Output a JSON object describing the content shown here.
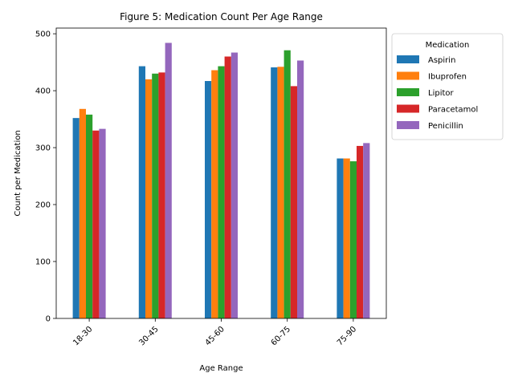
{
  "chart_data": {
    "type": "bar",
    "title": "Figure 5: Medication Count Per Age Range",
    "xlabel": "Age Range",
    "ylabel": "Count per Medication",
    "categories": [
      "18-30",
      "30-45",
      "45-60",
      "60-75",
      "75-90"
    ],
    "ylim": [
      0,
      510
    ],
    "yticks": [
      0,
      100,
      200,
      300,
      400,
      500
    ],
    "grid": false,
    "legend": {
      "title": "Medication",
      "placement": "outside-top-right"
    },
    "series": [
      {
        "name": "Aspirin",
        "color": "#1f77b4",
        "values": [
          352,
          443,
          417,
          441,
          281
        ]
      },
      {
        "name": "Ibuprofen",
        "color": "#ff7f0e",
        "values": [
          368,
          420,
          436,
          442,
          281
        ]
      },
      {
        "name": "Lipitor",
        "color": "#2ca02c",
        "values": [
          358,
          430,
          443,
          471,
          276
        ]
      },
      {
        "name": "Paracetamol",
        "color": "#d62728",
        "values": [
          330,
          432,
          460,
          408,
          303
        ]
      },
      {
        "name": "Penicillin",
        "color": "#9467bd",
        "values": [
          333,
          484,
          467,
          453,
          308
        ]
      }
    ]
  }
}
